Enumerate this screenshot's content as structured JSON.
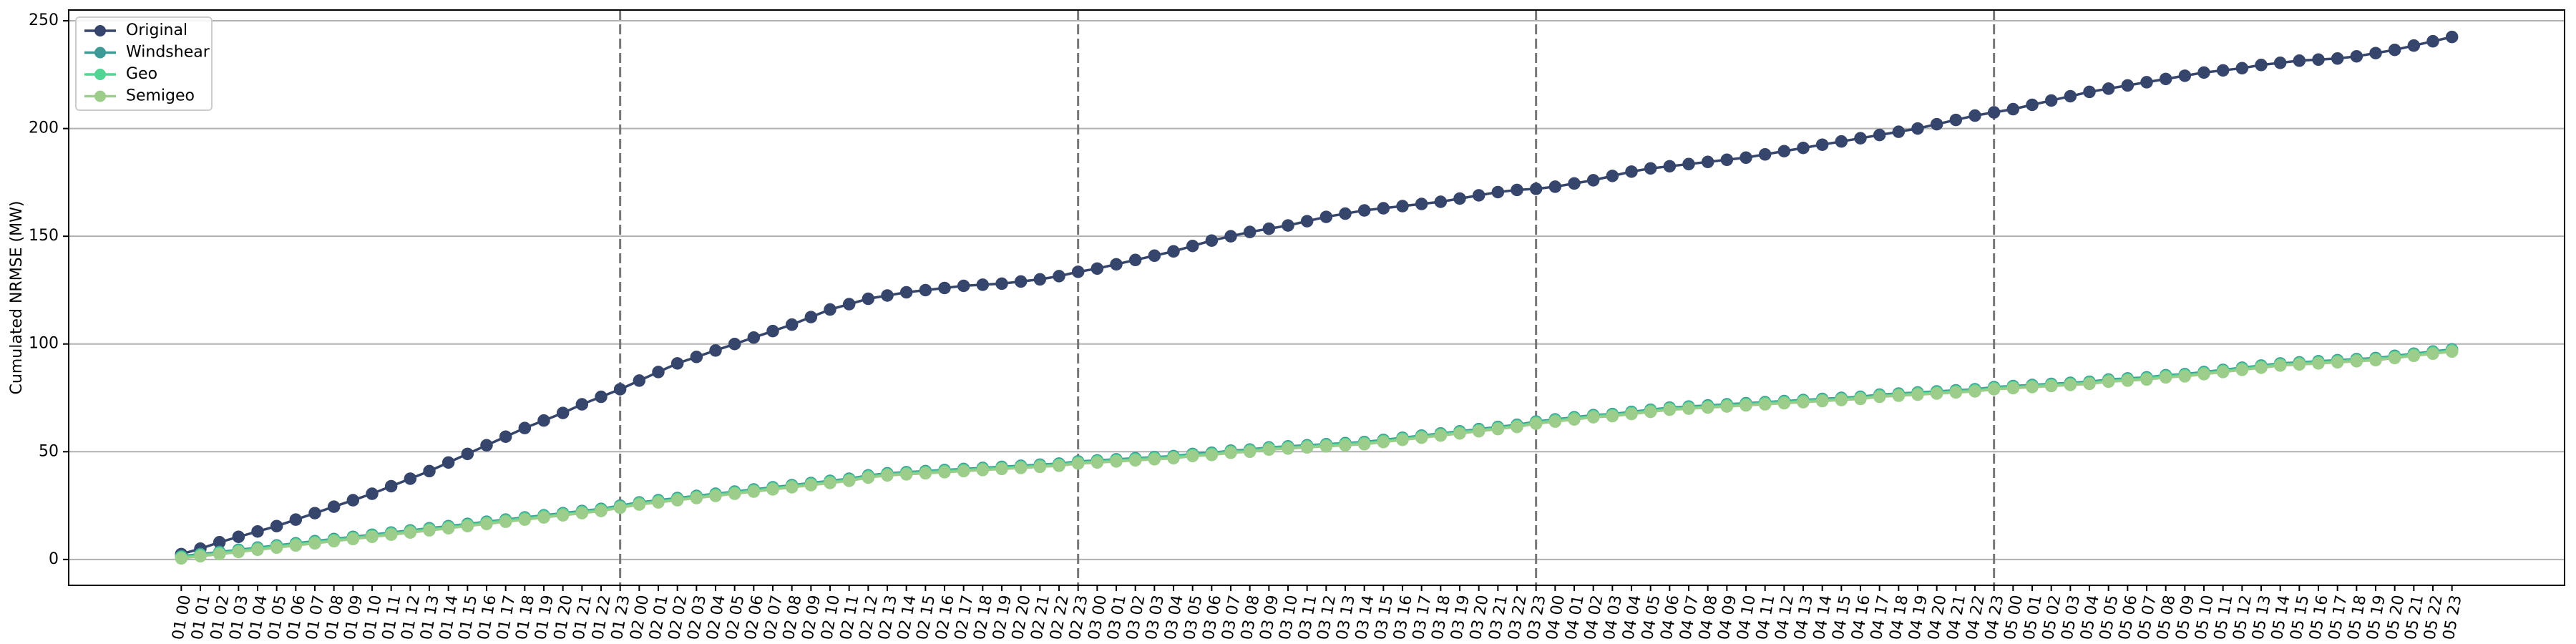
{
  "chart_data": {
    "type": "line",
    "ylabel": "Cumulated NRMSE (MW)",
    "categories": [
      "01 00",
      "01 01",
      "01 02",
      "01 03",
      "01 04",
      "01 05",
      "01 06",
      "01 07",
      "01 08",
      "01 09",
      "01 10",
      "01 11",
      "01 12",
      "01 13",
      "01 14",
      "01 15",
      "01 16",
      "01 17",
      "01 18",
      "01 19",
      "01 20",
      "01 21",
      "01 22",
      "01 23",
      "02 00",
      "02 01",
      "02 02",
      "02 03",
      "02 04",
      "02 05",
      "02 06",
      "02 07",
      "02 08",
      "02 09",
      "02 10",
      "02 11",
      "02 12",
      "02 13",
      "02 14",
      "02 15",
      "02 16",
      "02 17",
      "02 18",
      "02 19",
      "02 20",
      "02 21",
      "02 22",
      "02 23",
      "03 00",
      "03 01",
      "03 02",
      "03 03",
      "03 04",
      "03 05",
      "03 06",
      "03 07",
      "03 08",
      "03 09",
      "03 10",
      "03 11",
      "03 12",
      "03 13",
      "03 14",
      "03 15",
      "03 16",
      "03 17",
      "03 18",
      "03 19",
      "03 20",
      "03 21",
      "03 22",
      "03 23",
      "04 00",
      "04 01",
      "04 02",
      "04 03",
      "04 04",
      "04 05",
      "04 06",
      "04 07",
      "04 08",
      "04 09",
      "04 10",
      "04 11",
      "04 12",
      "04 13",
      "04 14",
      "04 15",
      "04 16",
      "04 17",
      "04 18",
      "04 19",
      "04 20",
      "04 21",
      "04 22",
      "04 23",
      "05 00",
      "05 01",
      "05 02",
      "05 03",
      "05 04",
      "05 05",
      "05 06",
      "05 07",
      "05 08",
      "05 09",
      "05 10",
      "05 11",
      "05 12",
      "05 13",
      "05 14",
      "05 15",
      "05 16",
      "05 17",
      "05 18",
      "05 19",
      "05 20",
      "05 21",
      "05 22",
      "05 23"
    ],
    "series": [
      {
        "name": "Original",
        "color": "#36456b",
        "values": [
          2.5,
          5,
          8,
          10.5,
          13,
          15.5,
          18.5,
          21.5,
          24.5,
          27.5,
          30.5,
          34,
          37.5,
          41,
          45,
          49,
          53,
          57,
          61,
          64.5,
          68,
          72,
          75.5,
          79,
          83,
          87,
          91,
          94,
          97,
          100,
          103,
          106,
          109,
          112.5,
          116,
          118.5,
          121,
          122.5,
          124,
          125,
          126,
          127,
          127.5,
          128,
          129,
          130,
          131.5,
          133.5,
          135,
          137,
          139,
          141,
          143,
          145.5,
          148,
          150,
          152,
          153.5,
          155,
          157,
          159,
          160.5,
          162,
          163,
          164,
          165,
          166,
          167.5,
          169,
          170.5,
          171.5,
          172,
          173,
          174.5,
          176,
          178,
          180,
          181.5,
          182.5,
          183.5,
          184.5,
          185.5,
          186.5,
          188,
          189.5,
          191,
          192.5,
          194,
          195.5,
          197,
          198.5,
          200,
          202,
          204,
          206,
          207.5,
          209,
          211,
          213,
          215,
          217,
          218.5,
          220,
          221.5,
          223,
          224.5,
          226,
          227,
          228,
          229.5,
          230.5,
          231.5,
          232,
          232.5,
          233.5,
          235,
          236.5,
          238.5,
          240.5,
          242.5
        ]
      },
      {
        "name": "Windshear",
        "color": "#3d9a95",
        "values": [
          1.5,
          2.5,
          3.5,
          4.5,
          5.5,
          6.5,
          7.5,
          8.5,
          9.5,
          10.5,
          11.5,
          12.5,
          13.5,
          14.5,
          15.5,
          16.5,
          17.5,
          18.5,
          19.5,
          20.5,
          21.5,
          22.5,
          23.5,
          25,
          26.5,
          27.5,
          28.5,
          29.5,
          30.5,
          31.5,
          32.5,
          33.5,
          34.5,
          35.5,
          36.5,
          37.5,
          39,
          40,
          40.5,
          41,
          41.5,
          42,
          42.5,
          43,
          43.5,
          44,
          44.5,
          45.5,
          46,
          46.5,
          47,
          47.5,
          48,
          49,
          49.5,
          50.5,
          51,
          52,
          52.5,
          53,
          53.5,
          54,
          54.5,
          55.5,
          56.5,
          57.5,
          58.5,
          59.5,
          60.5,
          61.5,
          62.5,
          64,
          65,
          66,
          67,
          67.5,
          68.5,
          69.5,
          70.5,
          71,
          71.5,
          72,
          72.5,
          73,
          73.5,
          74,
          74.5,
          75,
          75.5,
          76.5,
          77,
          77.5,
          78,
          78.5,
          79,
          80,
          80.5,
          81,
          81.5,
          82,
          82.5,
          83.5,
          84,
          84.5,
          85.5,
          86,
          87,
          88,
          89,
          90,
          91,
          91.5,
          92,
          92.5,
          93,
          93.5,
          94.5,
          95.5,
          96.5,
          97.5
        ]
      },
      {
        "name": "Geo",
        "color": "#52d494",
        "values": [
          1,
          2,
          3,
          4,
          5,
          6,
          7,
          8,
          9,
          10,
          11,
          12,
          13,
          14,
          15,
          16,
          17,
          18,
          19,
          20,
          21,
          22,
          23,
          24.5,
          26,
          27,
          28,
          29,
          30,
          31,
          32,
          33,
          34,
          35,
          36,
          37,
          38.5,
          39.5,
          40,
          40.5,
          41,
          41.5,
          42,
          42.5,
          43,
          43.5,
          44,
          45,
          45.5,
          46,
          46.5,
          47,
          47.5,
          48.5,
          49,
          50,
          50.5,
          51.5,
          52,
          52.5,
          53,
          53.5,
          54,
          55,
          56,
          57,
          58,
          59,
          60,
          61,
          62,
          63.5,
          64.5,
          65.5,
          66.5,
          67,
          68,
          69,
          70,
          70.5,
          71,
          71.5,
          72,
          72.5,
          73,
          73.5,
          74,
          74.5,
          75,
          76,
          76.5,
          77,
          77.5,
          78,
          78.5,
          79.5,
          80,
          80.5,
          81,
          81.5,
          82,
          83,
          83.5,
          84,
          85,
          85.5,
          86.5,
          87.5,
          88.5,
          89.5,
          90.5,
          91,
          91.5,
          92,
          92.5,
          93,
          94,
          95,
          96,
          97
        ]
      },
      {
        "name": "Semigeo",
        "color": "#9ccd8a",
        "values": [
          0.5,
          1.5,
          2.5,
          3.5,
          4.5,
          5.5,
          6.5,
          7.5,
          8.5,
          9.5,
          10.5,
          11.5,
          12.5,
          13.5,
          14.5,
          15.5,
          16.5,
          17.5,
          18.5,
          19.5,
          20.5,
          21.5,
          22.5,
          24,
          25.5,
          26.5,
          27.5,
          28.5,
          29.5,
          30.5,
          31.5,
          32.5,
          33.5,
          34.5,
          35.5,
          36.5,
          38,
          39,
          39.5,
          40,
          40.5,
          41,
          41.5,
          42,
          42.5,
          43,
          43.5,
          44.5,
          45,
          45.5,
          46,
          46.5,
          47,
          48,
          48.5,
          49.5,
          50,
          51,
          51.5,
          52,
          52.5,
          53,
          53.5,
          54.5,
          55.5,
          56.5,
          57.5,
          58.5,
          59.5,
          60.5,
          61.5,
          63,
          64,
          65,
          66,
          66.5,
          67.5,
          68.5,
          69.5,
          70,
          70.5,
          71,
          71.5,
          72,
          72.5,
          73,
          73.5,
          74,
          74.5,
          75.5,
          76,
          76.5,
          77,
          77.5,
          78,
          79,
          79.5,
          80,
          80.5,
          81,
          81.5,
          82.5,
          83,
          83.5,
          84.5,
          85,
          86,
          87,
          88,
          89,
          90,
          90.5,
          91,
          91.5,
          92,
          92.5,
          93.5,
          94.5,
          95.5,
          96.5
        ]
      }
    ],
    "vlines": [
      "01 23",
      "02 23",
      "03 23",
      "04 23"
    ],
    "ylim": [
      -12,
      255
    ],
    "yticks": [
      0,
      50,
      100,
      150,
      200,
      250
    ],
    "grid": true,
    "legend": "upper left"
  }
}
